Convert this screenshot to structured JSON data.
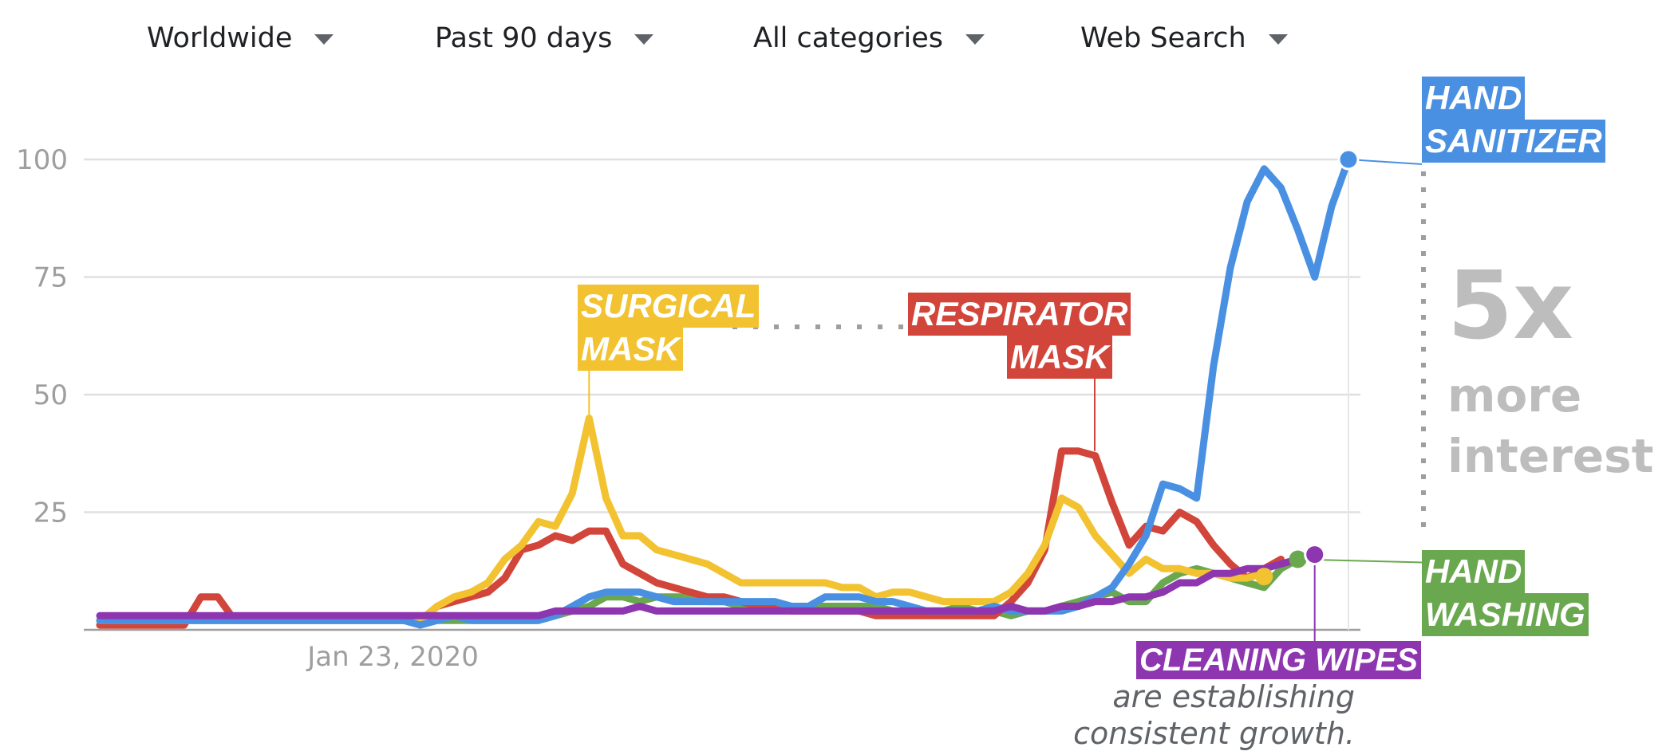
{
  "filters": [
    {
      "label": "Worldwide"
    },
    {
      "label": "Past 90 days"
    },
    {
      "label": "All categories"
    },
    {
      "label": "Web Search"
    }
  ],
  "annotations": {
    "hand_sanitizer": [
      "HAND",
      "SANITIZER"
    ],
    "surgical_mask": [
      "SURGICAL",
      "MASK"
    ],
    "respirator_mask": [
      "RESPIRATOR",
      "MASK"
    ],
    "hand_washing": [
      "HAND",
      "WASHING"
    ],
    "cleaning_wipes": "CLEANING WIPES",
    "multiplier": "5x",
    "multiplier_text": [
      "more",
      "interest"
    ],
    "wipes_note": [
      "are establishing",
      "consistent growth."
    ]
  },
  "colors": {
    "hand_sanitizer": "#4a90e2",
    "surgical_mask": "#f2c230",
    "respirator_mask": "#d2453a",
    "hand_washing": "#6aa84f",
    "cleaning_wipes": "#8e35b0",
    "grid": "#e0e0e0",
    "axis_text": "#9e9e9e"
  },
  "chart_data": {
    "type": "line",
    "title": "",
    "xlabel": "",
    "ylabel": "",
    "ylim": [
      0,
      100
    ],
    "yticks": [
      25,
      50,
      75,
      100
    ],
    "x_tick_labels": [
      "Jan 23, 2020"
    ],
    "x_tick_label_index": 17,
    "series": [
      {
        "key": "hand_sanitizer",
        "name": "HAND SANITIZER",
        "values": [
          2,
          2,
          2,
          2,
          2,
          2,
          2,
          2,
          2,
          2,
          2,
          2,
          2,
          2,
          2,
          2,
          2,
          2,
          2,
          1,
          2,
          3,
          2,
          2,
          2,
          2,
          2,
          3,
          5,
          7,
          8,
          8,
          8,
          7,
          6,
          6,
          6,
          6,
          6,
          6,
          6,
          5,
          5,
          7,
          7,
          7,
          6,
          6,
          5,
          4,
          4,
          4,
          4,
          5,
          4,
          4,
          4,
          4,
          5,
          7,
          9,
          14,
          20,
          31,
          30,
          28,
          56,
          77,
          91,
          98,
          94,
          85,
          75,
          90,
          100
        ]
      },
      {
        "key": "surgical_mask",
        "name": "SURGICAL MASK",
        "values": [
          2,
          2,
          2,
          2,
          2,
          2,
          2,
          2,
          2,
          2,
          2,
          2,
          2,
          2,
          2,
          2,
          2,
          2,
          2,
          2,
          5,
          7,
          8,
          10,
          15,
          18,
          23,
          22,
          29,
          45,
          28,
          20,
          20,
          17,
          16,
          15,
          14,
          12,
          10,
          10,
          10,
          10,
          10,
          10,
          9,
          9,
          7,
          8,
          8,
          7,
          6,
          6,
          6,
          6,
          8,
          12,
          18,
          28,
          26,
          20,
          16,
          12,
          15,
          13,
          13,
          12,
          12,
          11,
          11,
          12
        ]
      },
      {
        "key": "respirator_mask",
        "name": "RESPIRATOR MASK",
        "values": [
          1,
          1,
          1,
          1,
          1,
          1,
          7,
          7,
          2,
          2,
          2,
          2,
          2,
          2,
          2,
          2,
          2,
          2,
          2,
          2,
          5,
          6,
          7,
          8,
          11,
          17,
          18,
          20,
          19,
          21,
          21,
          14,
          12,
          10,
          9,
          8,
          7,
          7,
          6,
          5,
          5,
          4,
          4,
          4,
          4,
          4,
          3,
          3,
          3,
          3,
          3,
          3,
          3,
          3,
          6,
          10,
          17,
          38,
          38,
          37,
          27,
          18,
          22,
          21,
          25,
          23,
          18,
          14,
          11,
          13,
          15
        ]
      },
      {
        "key": "hand_washing",
        "name": "HAND WASHING",
        "values": [
          2,
          2,
          2,
          2,
          2,
          2,
          2,
          2,
          2,
          2,
          2,
          2,
          2,
          2,
          2,
          2,
          2,
          2,
          2,
          2,
          2,
          2,
          2,
          2,
          2,
          2,
          2,
          3,
          4,
          5,
          7,
          7,
          6,
          7,
          7,
          7,
          6,
          6,
          5,
          5,
          5,
          5,
          5,
          5,
          5,
          5,
          5,
          4,
          4,
          4,
          4,
          5,
          4,
          4,
          3,
          4,
          4,
          5,
          6,
          7,
          8,
          6,
          6,
          10,
          12,
          13,
          12,
          11,
          10,
          9,
          13,
          15
        ]
      },
      {
        "key": "cleaning_wipes",
        "name": "CLEANING WIPES",
        "values": [
          3,
          3,
          3,
          3,
          3,
          3,
          3,
          3,
          3,
          3,
          3,
          3,
          3,
          3,
          3,
          3,
          3,
          3,
          3,
          3,
          3,
          3,
          3,
          3,
          3,
          3,
          3,
          4,
          4,
          4,
          4,
          4,
          5,
          4,
          4,
          4,
          4,
          4,
          4,
          4,
          4,
          4,
          4,
          4,
          4,
          4,
          4,
          4,
          4,
          4,
          4,
          4,
          4,
          4,
          5,
          4,
          4,
          5,
          5,
          6,
          6,
          7,
          7,
          8,
          10,
          10,
          12,
          12,
          13,
          13,
          14,
          15,
          16
        ]
      }
    ]
  }
}
